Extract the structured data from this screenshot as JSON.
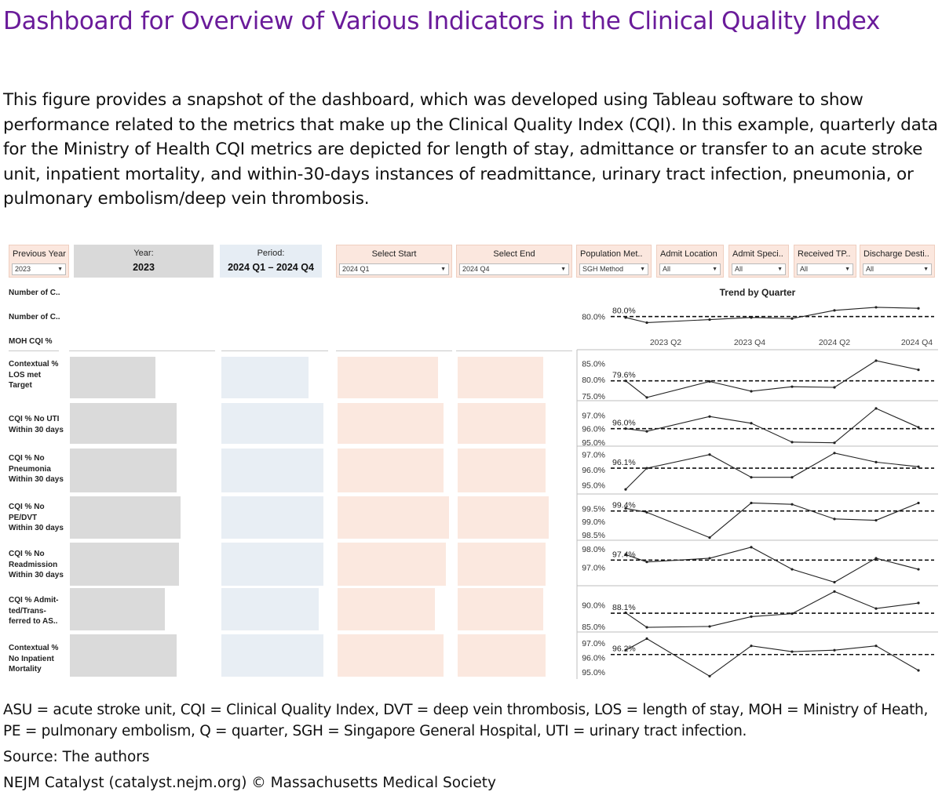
{
  "page": {
    "title": "Dashboard for Overview of Various Indicators in the Clinical Quality Index",
    "description": "This figure provides a snapshot of the dashboard, which was developed using Tableau software to show performance related to the metrics that make up the Clinical Quality Index (CQI). In this example, quarterly data for the Ministry of Health CQI metrics are depicted for length of stay, admittance or transfer to an acute stroke unit, inpatient mortality, and within-30-days instances of readmittance, urinary tract infection, pneumonia, or pulmonary embolism/deep vein thrombosis.",
    "footnote": "ASU = acute stroke unit, CQI = Clinical Quality Index, DVT = deep vein thrombosis, LOS = length of stay, MOH = Ministry of Heath, PE = pulmonary embolism, Q = quarter, SGH = Singapore General Hospital, UTI = urinary tract infection.",
    "source": "Source: The authors",
    "credit": "NEJM Catalyst (catalyst.nejm.org) © Massachusetts Medical Society"
  },
  "filters": {
    "previous_year": {
      "label": "Previous Year",
      "value": "2023"
    },
    "year": {
      "label": "Year:",
      "value": "2023"
    },
    "period": {
      "label": "Period:",
      "value": "2024 Q1 – 2024 Q4"
    },
    "select_start": {
      "label": "Select Start",
      "value": "2024 Q1"
    },
    "select_end": {
      "label": "Select End",
      "value": "2024 Q4"
    },
    "population_method": {
      "label": "Population Met..",
      "value": "SGH Method"
    },
    "admit_location": {
      "label": "Admit Location",
      "value": "All"
    },
    "admit_specialty": {
      "label": "Admit Speci..",
      "value": "All"
    },
    "received_tpa": {
      "label": "Received TP..",
      "value": "All"
    },
    "discharge_destination": {
      "label": "Discharge Desti..",
      "value": "All"
    },
    "dropdown_arrow": "▼"
  },
  "rows": {
    "summary": [
      "Number of C..",
      "Number of C..",
      "MOH CQI %"
    ],
    "metrics": [
      [
        "Contextual %",
        "LOS met",
        "Target"
      ],
      [
        "CQI % No UTI",
        "Within 30 days"
      ],
      [
        "CQI % No",
        "Pneumonia",
        "Within 30 days"
      ],
      [
        "CQI % No",
        "PE/DVT",
        "Within 30 days"
      ],
      [
        "CQI % No",
        "Readmission",
        "Within 30 days"
      ],
      [
        "CQI % Admit-",
        "ted/Trans-",
        "ferred to AS.."
      ],
      [
        "Contextual %",
        "No Inpatient",
        "Mortality"
      ]
    ]
  },
  "bars": {
    "previous_year": [
      0.62,
      0.77,
      0.77,
      0.8,
      0.79,
      0.69,
      0.77
    ],
    "year": [
      0.85,
      1.0,
      1.0,
      1.0,
      1.0,
      0.95,
      1.0
    ],
    "start": [
      0.9,
      0.95,
      0.95,
      1.0,
      0.97,
      0.87,
      0.95
    ],
    "end": [
      0.82,
      0.84,
      0.84,
      0.87,
      0.84,
      0.82,
      0.84
    ]
  },
  "chart_data": {
    "type": "line",
    "title": "Trend by Quarter",
    "x": [
      "2023 Q1",
      "2023 Q2",
      "2023 Q3",
      "2023 Q4",
      "2024 Q1",
      "2024 Q2",
      "2024 Q3",
      "2024 Q4"
    ],
    "x_tick_labels": [
      "2023 Q2",
      "2023 Q4",
      "2024 Q2",
      "2024 Q4"
    ],
    "series": [
      {
        "name": "MOH CQI %",
        "values": [
          79.9,
          79.4,
          79.7,
          79.9,
          79.8,
          80.6,
          80.9,
          80.8
        ],
        "reference": 80.0,
        "reference_label": "80.0%",
        "ylim": [
          78.9,
          81.2
        ],
        "yticks": [
          {
            "v": 80.0,
            "label": "80.0%"
          }
        ]
      },
      {
        "name": "Contextual % LOS met Target",
        "values": [
          79.6,
          74.5,
          79.4,
          76.4,
          77.8,
          77.6,
          85.8,
          83.0
        ],
        "reference": 79.6,
        "reference_label": "79.6%",
        "ylim": [
          73.5,
          87.0
        ],
        "yticks": [
          {
            "v": 85.0,
            "label": "85.0%"
          },
          {
            "v": 80.0,
            "label": "80.0%"
          },
          {
            "v": 75.0,
            "label": "75.0%"
          }
        ]
      },
      {
        "name": "CQI % No UTI Within 30 days",
        "values": [
          96.0,
          95.8,
          96.9,
          96.4,
          95.0,
          94.95,
          97.5,
          96.1
        ],
        "reference": 96.0,
        "reference_label": "96.0%",
        "ylim": [
          94.7,
          97.9
        ],
        "yticks": [
          {
            "v": 97.0,
            "label": "97.0%"
          },
          {
            "v": 96.0,
            "label": "96.0%"
          },
          {
            "v": 95.0,
            "label": "95.0%"
          }
        ]
      },
      {
        "name": "CQI % No Pneumonia Within 30 days",
        "values": [
          94.7,
          96.1,
          97.0,
          95.5,
          95.5,
          97.1,
          96.5,
          96.2
        ],
        "reference": 96.1,
        "reference_label": "96.1%",
        "ylim": [
          94.5,
          97.4
        ],
        "yticks": [
          {
            "v": 97.0,
            "label": "97.0%"
          },
          {
            "v": 96.0,
            "label": "96.0%"
          },
          {
            "v": 95.0,
            "label": "95.0%"
          }
        ]
      },
      {
        "name": "CQI % No PE/DVT Within 30 days",
        "values": [
          99.5,
          99.35,
          98.4,
          99.7,
          99.65,
          99.1,
          99.05,
          99.7
        ],
        "reference": 99.4,
        "reference_label": "99.4%",
        "ylim": [
          98.3,
          99.95
        ],
        "yticks": [
          {
            "v": 99.5,
            "label": "99.5%"
          },
          {
            "v": 99.0,
            "label": "99.0%"
          },
          {
            "v": 98.5,
            "label": "98.5%"
          }
        ]
      },
      {
        "name": "CQI % No Readmission Within 30 days",
        "values": [
          97.7,
          97.3,
          97.5,
          98.1,
          96.9,
          96.2,
          97.5,
          96.9
        ],
        "reference": 97.4,
        "reference_label": "97.4%",
        "ylim": [
          96.05,
          98.35
        ],
        "yticks": [
          {
            "v": 98.0,
            "label": "98.0%"
          },
          {
            "v": 97.0,
            "label": "97.0%"
          }
        ]
      },
      {
        "name": "CQI % Admitted/Transferred to ASU",
        "values": [
          88.2,
          84.8,
          85.0,
          87.3,
          88.0,
          93.2,
          89.2,
          90.5
        ],
        "reference": 88.1,
        "reference_label": "88.1%",
        "ylim": [
          83.7,
          94.0
        ],
        "yticks": [
          {
            "v": 90.0,
            "label": "90.0%"
          },
          {
            "v": 85.0,
            "label": "85.0%"
          }
        ]
      },
      {
        "name": "Contextual % No Inpatient Mortality",
        "values": [
          96.5,
          97.3,
          94.7,
          96.8,
          96.4,
          96.5,
          96.8,
          95.1
        ],
        "reference": 96.2,
        "reference_label": "96.2%",
        "ylim": [
          94.5,
          97.6
        ],
        "yticks": [
          {
            "v": 97.0,
            "label": "97.0%"
          },
          {
            "v": 96.0,
            "label": "96.0%"
          },
          {
            "v": 95.0,
            "label": "95.0%"
          }
        ]
      }
    ]
  }
}
